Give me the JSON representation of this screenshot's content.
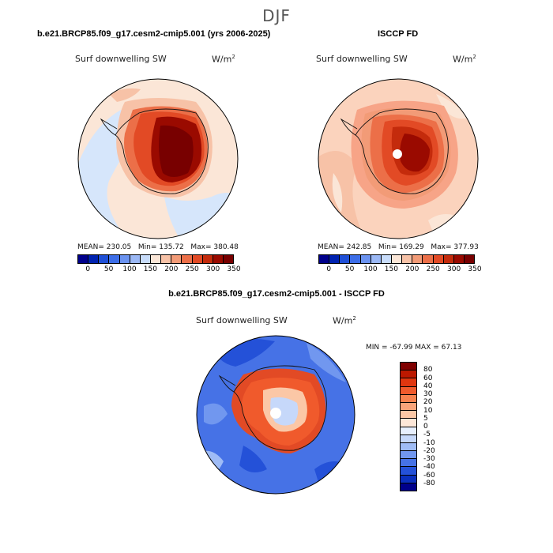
{
  "season": "DJF",
  "top_left": {
    "title": "b.e21.BRCP85.f09_g17.cesm2-cmip5.001 (yrs 2006-2025)",
    "variable": "Surf downwelling SW",
    "units": "W/m",
    "units_sup": "2",
    "mean_label": "MEAN=",
    "mean": "230.05",
    "min_label": "Min=",
    "min": "135.72",
    "max_label": "Max=",
    "max": "380.48"
  },
  "top_right": {
    "title": "ISCCP FD",
    "variable": "Surf downwelling SW",
    "units": "W/m",
    "units_sup": "2",
    "mean_label": "MEAN=",
    "mean": "242.85",
    "min_label": "Min=",
    "min": "169.29",
    "max_label": "Max=",
    "max": "377.93"
  },
  "bottom": {
    "title": "b.e21.BRCP85.f09_g17.cesm2-cmip5.001 - ISCCP FD",
    "variable": "Surf downwelling SW",
    "units": "W/m",
    "units_sup": "2",
    "minmax": "MIN = -67.99  MAX =  67.13"
  },
  "colorbar_top": {
    "colors": [
      "#00008b",
      "#0022b0",
      "#1f4fd6",
      "#3d6ee8",
      "#6b93f0",
      "#9bb8f5",
      "#c8dcfa",
      "#fbe6d7",
      "#f7c2a7",
      "#f29b77",
      "#ec6f48",
      "#e24a25",
      "#c42b0c",
      "#9a0a00",
      "#780000"
    ],
    "ticks": [
      "0",
      "50",
      "100",
      "150",
      "200",
      "250",
      "300",
      "350"
    ]
  },
  "colorbar_diff": {
    "colors": [
      "#7f0000",
      "#bc1800",
      "#e0360f",
      "#f05a2c",
      "#f7824f",
      "#f9a47a",
      "#fbc7a6",
      "#fde7d8",
      "#e7effd",
      "#c6d8fa",
      "#9fbcf6",
      "#7197ef",
      "#4672e6",
      "#2451d8",
      "#0a2fbd",
      "#00008b"
    ],
    "ticks": [
      "80",
      "60",
      "40",
      "30",
      "20",
      "10",
      "5",
      "0",
      "-5",
      "-10",
      "-20",
      "-30",
      "-40",
      "-60",
      "-80"
    ]
  }
}
